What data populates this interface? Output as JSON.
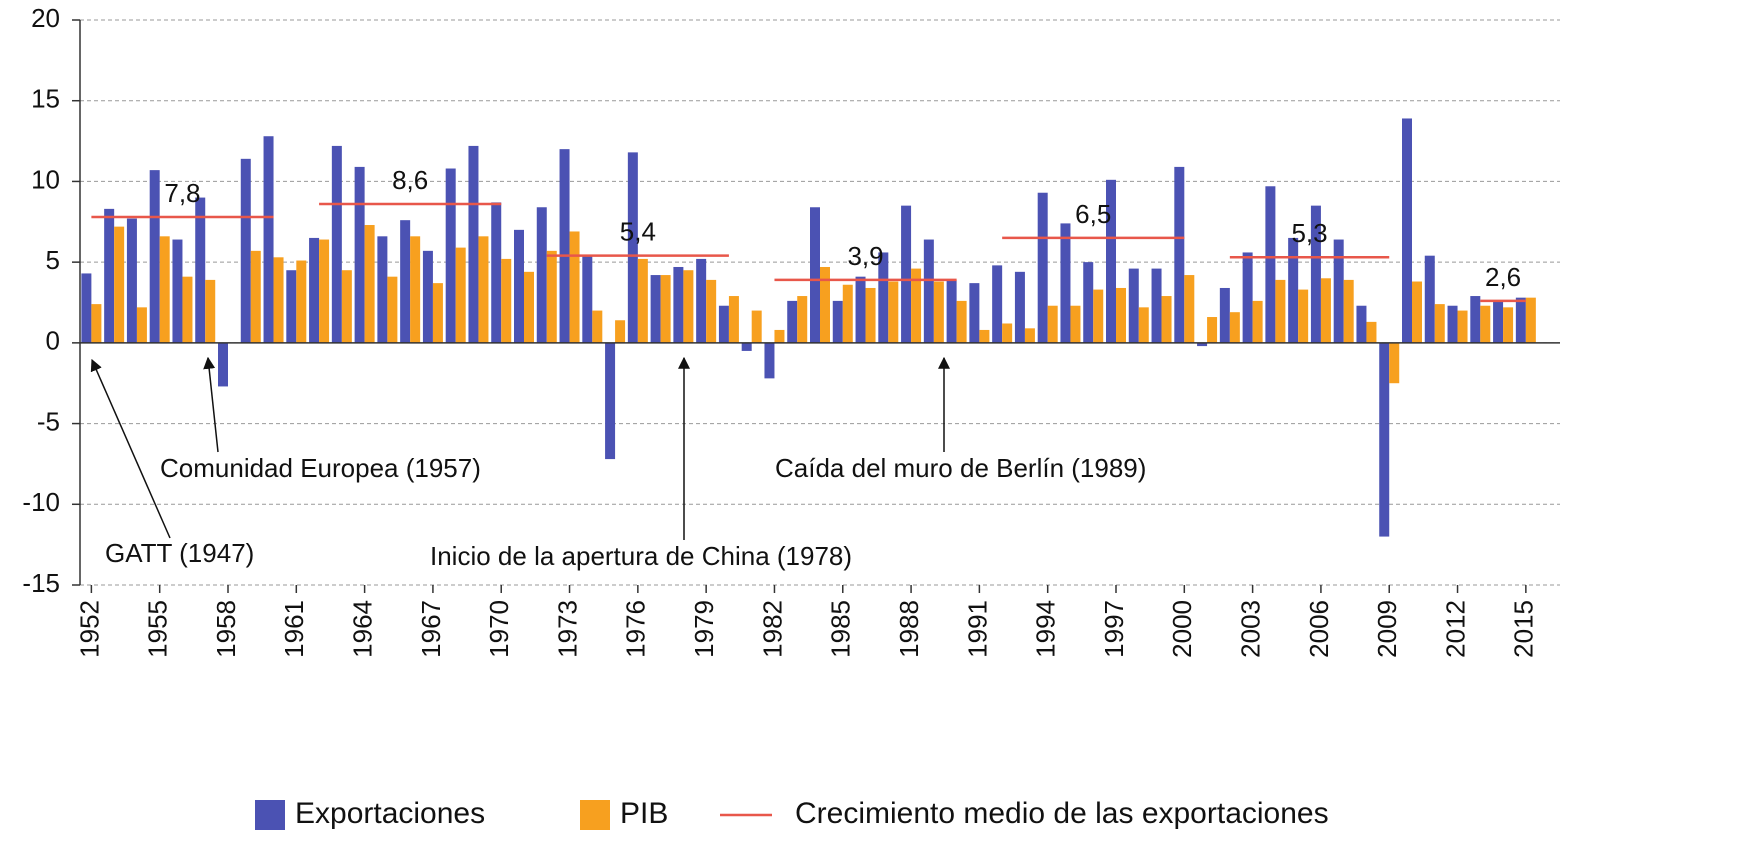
{
  "chart_data": {
    "type": "bar",
    "x": [
      1952,
      1953,
      1954,
      1955,
      1956,
      1957,
      1958,
      1959,
      1960,
      1961,
      1962,
      1963,
      1964,
      1965,
      1966,
      1967,
      1968,
      1969,
      1970,
      1971,
      1972,
      1973,
      1974,
      1975,
      1976,
      1977,
      1978,
      1979,
      1980,
      1981,
      1982,
      1983,
      1984,
      1985,
      1986,
      1987,
      1988,
      1989,
      1990,
      1991,
      1992,
      1993,
      1994,
      1995,
      1996,
      1997,
      1998,
      1999,
      2000,
      2001,
      2002,
      2003,
      2004,
      2005,
      2006,
      2007,
      2008,
      2009,
      2010,
      2011,
      2012,
      2013,
      2014,
      2015
    ],
    "series": [
      {
        "name": "Exportaciones",
        "color": "#4b52b3",
        "values": [
          4.3,
          8.3,
          7.7,
          10.7,
          6.4,
          9.0,
          -2.7,
          11.4,
          12.8,
          4.5,
          6.5,
          12.2,
          10.9,
          6.6,
          7.6,
          5.7,
          10.8,
          12.2,
          8.7,
          7.0,
          8.4,
          12.0,
          5.4,
          -7.2,
          11.8,
          4.2,
          4.7,
          5.2,
          2.3,
          -0.5,
          -2.2,
          2.6,
          8.4,
          2.6,
          4.1,
          5.6,
          8.5,
          6.4,
          3.9,
          3.7,
          4.8,
          4.4,
          9.3,
          7.4,
          5.0,
          10.1,
          4.6,
          4.6,
          10.9,
          -0.2,
          3.4,
          5.6,
          9.7,
          6.5,
          8.5,
          6.4,
          2.3,
          -12.0,
          13.9,
          5.4,
          2.3,
          2.9,
          2.6,
          2.8
        ]
      },
      {
        "name": "PIB",
        "color": "#f7a01f",
        "values": [
          2.4,
          7.2,
          2.2,
          6.6,
          4.1,
          3.9,
          0,
          5.7,
          5.3,
          5.1,
          6.4,
          4.5,
          7.3,
          4.1,
          6.6,
          3.7,
          5.9,
          6.6,
          5.2,
          4.4,
          5.7,
          6.9,
          2.0,
          1.4,
          5.2,
          4.2,
          4.5,
          3.9,
          2.9,
          2.0,
          0.8,
          2.9,
          4.7,
          3.6,
          3.4,
          3.8,
          4.6,
          3.8,
          2.6,
          0.8,
          1.2,
          0.9,
          2.3,
          2.3,
          3.3,
          3.4,
          2.2,
          2.9,
          4.2,
          1.6,
          1.9,
          2.6,
          3.9,
          3.3,
          4.0,
          3.9,
          1.3,
          -2.5,
          3.8,
          2.4,
          2.0,
          2.3,
          2.2,
          2.8
        ]
      }
    ],
    "average_line": {
      "name": "Crecimiento medio de las exportaciones",
      "color": "#e8574a",
      "segments": [
        {
          "x": [
            1952,
            1960
          ],
          "value": 7.8,
          "label": "7,8"
        },
        {
          "x": [
            1962,
            1970
          ],
          "value": 8.6,
          "label": "8,6"
        },
        {
          "x": [
            1972,
            1980
          ],
          "value": 5.4,
          "label": "5,4"
        },
        {
          "x": [
            1982,
            1990
          ],
          "value": 3.9,
          "label": "3,9"
        },
        {
          "x": [
            1992,
            2000
          ],
          "value": 6.5,
          "label": "6,5"
        },
        {
          "x": [
            2002,
            2009
          ],
          "value": 5.3,
          "label": "5,3"
        },
        {
          "x": [
            2013,
            2015
          ],
          "value": 2.6,
          "label": "2,6"
        }
      ]
    },
    "annotations": [
      "GATT (1947)",
      "Comunidad Europea (1957)",
      "Inicio de la apertura de China (1978)",
      "Caída del muro de Berlín (1989)"
    ],
    "xlim": [
      1951.5,
      2016.5
    ],
    "xticks": [
      1952,
      1955,
      1958,
      1961,
      1964,
      1967,
      1970,
      1973,
      1976,
      1979,
      1982,
      1985,
      1988,
      1991,
      1994,
      1997,
      2000,
      2003,
      2006,
      2009,
      2012,
      2015
    ],
    "ylim": [
      -15,
      20
    ],
    "yticks": [
      -15,
      -10,
      -5,
      0,
      5,
      10,
      15,
      20
    ],
    "grid": true
  }
}
